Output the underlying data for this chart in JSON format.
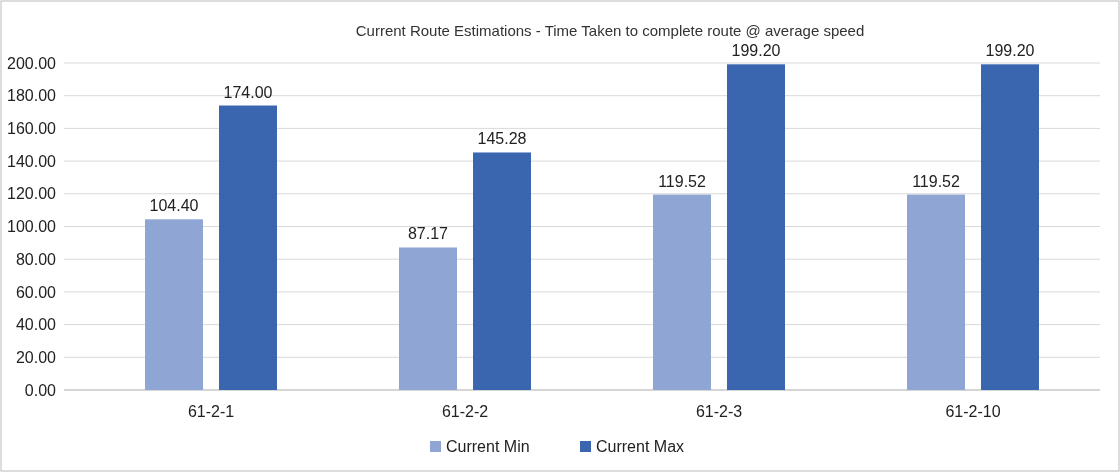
{
  "chart_data": {
    "type": "bar",
    "title": "Current Route Estimations - Time Taken to complete route @ average speed",
    "categories": [
      "61-2-1",
      "61-2-2",
      "61-2-3",
      "61-2-10"
    ],
    "series": [
      {
        "name": "Current Min",
        "color": "#8fa5d4",
        "values": [
          104.4,
          87.17,
          119.52,
          119.52
        ],
        "value_labels": [
          "104.40",
          "87.17",
          "119.52",
          "119.52"
        ]
      },
      {
        "name": "Current Max",
        "color": "#3a66b0",
        "values": [
          174,
          145.28,
          199.2,
          199.2
        ],
        "value_labels": [
          "174.00",
          "145.28",
          "199.20",
          "199.20"
        ]
      }
    ],
    "ylim": [
      0,
      200
    ],
    "yticks": [
      {
        "value": 0,
        "label": "0.00"
      },
      {
        "value": 20,
        "label": "20.00"
      },
      {
        "value": 40,
        "label": "40.00"
      },
      {
        "value": 60,
        "label": "60.00"
      },
      {
        "value": 80,
        "label": "80.00"
      },
      {
        "value": 100,
        "label": "100.00"
      },
      {
        "value": 120,
        "label": "120.00"
      },
      {
        "value": 140,
        "label": "140.00"
      },
      {
        "value": 160,
        "label": "160.00"
      },
      {
        "value": 180,
        "label": "180.00"
      },
      {
        "value": 200,
        "label": "200.00"
      }
    ],
    "grid": "y",
    "legend": "bottom"
  }
}
